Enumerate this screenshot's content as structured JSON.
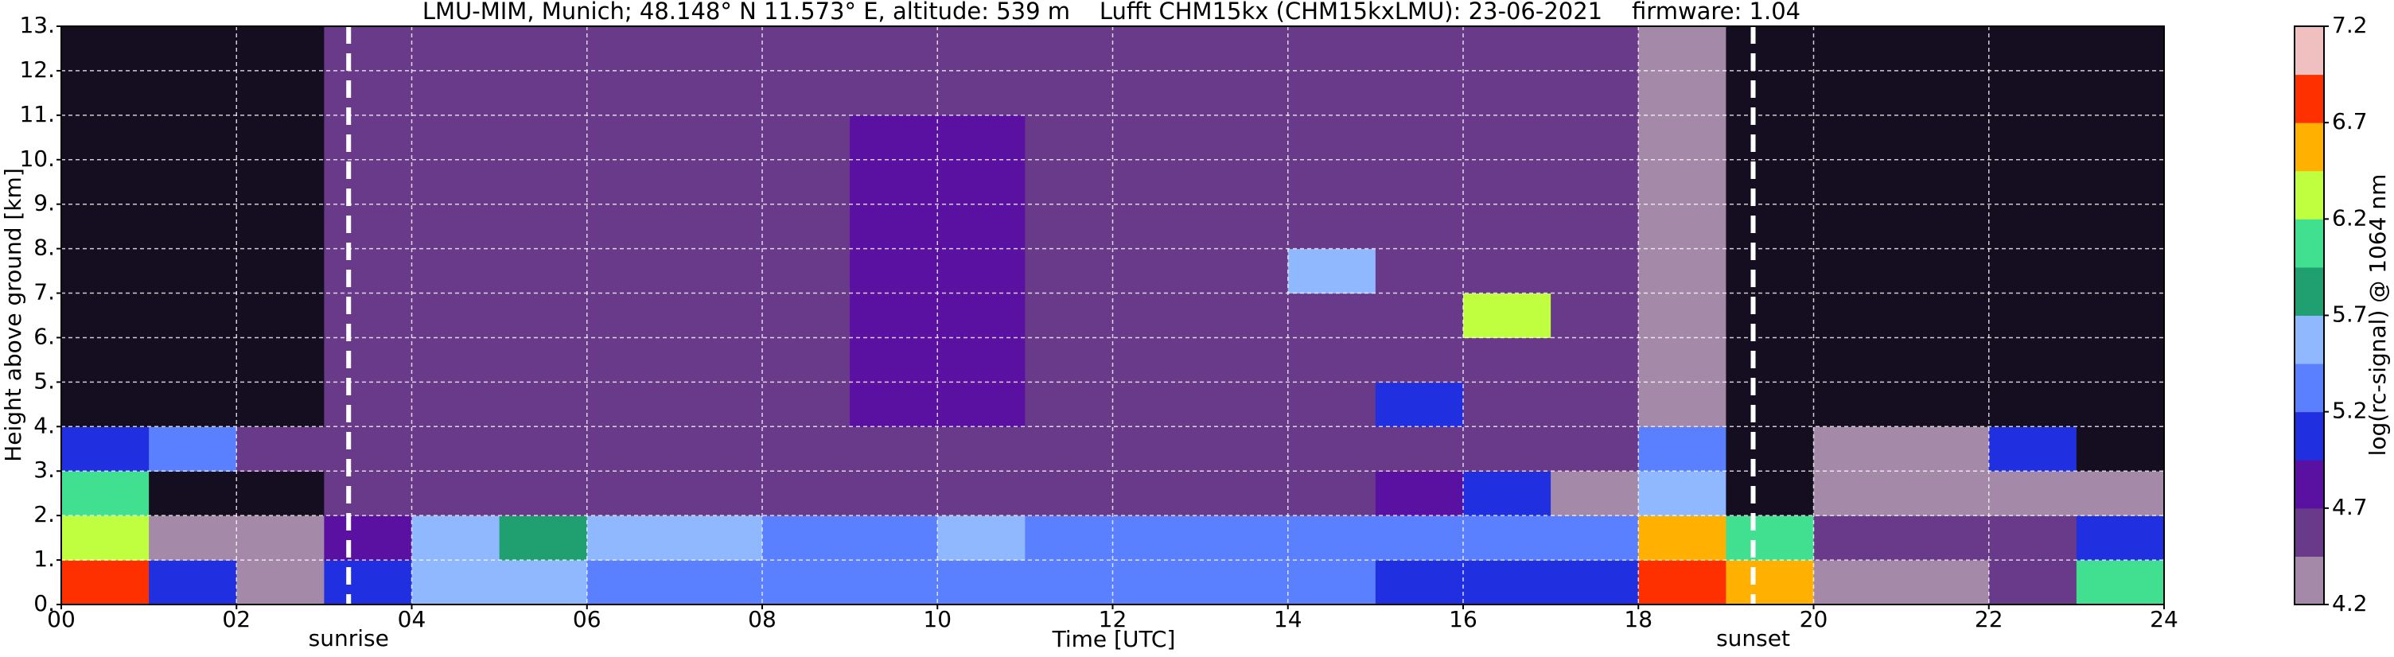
{
  "chart_data": {
    "type": "heatmap",
    "title": "LMU-MIM, Munich; 48.148° N 11.573° E, altitude: 539 m    Lufft CHM15kx (CHM15kxLMU): 23-06-2021    firmware: 1.04",
    "xlabel": "Time [UTC]",
    "ylabel": "Height above ground [km]",
    "colorbar_label": "log(rc-signal) @ 1064 nm",
    "xlim": [
      0,
      24
    ],
    "ylim": [
      0,
      13
    ],
    "zlim": [
      4.2,
      7.2
    ],
    "xticks": [
      {
        "value": 0,
        "label": "00"
      },
      {
        "value": 2,
        "label": "02"
      },
      {
        "value": 4,
        "label": "04"
      },
      {
        "value": 6,
        "label": "06"
      },
      {
        "value": 8,
        "label": "08"
      },
      {
        "value": 10,
        "label": "10"
      },
      {
        "value": 12,
        "label": "12"
      },
      {
        "value": 14,
        "label": "14"
      },
      {
        "value": 16,
        "label": "16"
      },
      {
        "value": 18,
        "label": "18"
      },
      {
        "value": 20,
        "label": "20"
      },
      {
        "value": 22,
        "label": "22"
      },
      {
        "value": 24,
        "label": "24"
      }
    ],
    "yticks": [
      {
        "value": 0,
        "label": "0."
      },
      {
        "value": 1,
        "label": "1."
      },
      {
        "value": 2,
        "label": "2."
      },
      {
        "value": 3,
        "label": "3."
      },
      {
        "value": 4,
        "label": "4."
      },
      {
        "value": 5,
        "label": "5."
      },
      {
        "value": 6,
        "label": "6."
      },
      {
        "value": 7,
        "label": "7."
      },
      {
        "value": 8,
        "label": "8."
      },
      {
        "value": 9,
        "label": "9."
      },
      {
        "value": 10,
        "label": "10."
      },
      {
        "value": 11,
        "label": "11."
      },
      {
        "value": 12,
        "label": "12."
      },
      {
        "value": 13,
        "label": "13."
      }
    ],
    "zticks": [
      4.2,
      4.7,
      5.2,
      5.7,
      6.2,
      6.7,
      7.2
    ],
    "grid": true,
    "colorscale": [
      "#a48aa8",
      "#6a3a8a",
      "#5a10a0",
      "#2030e0",
      "#5a80ff",
      "#90b8ff",
      "#20a070",
      "#40e090",
      "#c0ff40",
      "#ffb000",
      "#ff3000",
      "#f0c0c0"
    ],
    "under_color": "#140e20",
    "over_color": "#ffffff",
    "x": [
      0.5,
      1.5,
      2.5,
      3.5,
      4.5,
      5.5,
      6.5,
      7.5,
      8.5,
      9.5,
      10.5,
      11.5,
      12.5,
      13.5,
      14.5,
      15.5,
      16.5,
      17.5,
      18.5,
      19.5,
      20.5,
      21.5,
      22.5,
      23.5
    ],
    "y": [
      0.5,
      1.5,
      2.5,
      3.5,
      4.5,
      5.5,
      6.5,
      7.5,
      8.5,
      9.5,
      10.5,
      11.5,
      12.5
    ],
    "values": [
      [
        6.8,
        5.0,
        4.4,
        5.0,
        5.6,
        5.5,
        5.4,
        5.2,
        5.2,
        5.2,
        5.2,
        5.2,
        5.2,
        5.2,
        5.2,
        5.1,
        5.1,
        5.1,
        6.9,
        6.5,
        4.4,
        4.4,
        4.5,
        6.0
      ],
      [
        6.3,
        4.2,
        4.2,
        4.8,
        5.6,
        5.7,
        5.5,
        5.6,
        5.3,
        5.4,
        5.6,
        5.3,
        5.3,
        5.3,
        5.2,
        5.2,
        5.2,
        5.2,
        6.5,
        6.0,
        4.5,
        4.5,
        4.5,
        5.0
      ],
      [
        6.0,
        4.0,
        4.0,
        4.6,
        4.6,
        4.6,
        4.6,
        4.6,
        4.6,
        4.6,
        4.6,
        4.6,
        4.6,
        4.6,
        4.6,
        4.8,
        5.0,
        4.2,
        5.5,
        4.0,
        4.4,
        4.4,
        4.4,
        4.2
      ],
      [
        5.0,
        5.4,
        4.6,
        4.6,
        4.6,
        4.6,
        4.6,
        4.6,
        4.6,
        4.6,
        4.6,
        4.6,
        4.6,
        4.6,
        4.6,
        4.6,
        4.6,
        4.6,
        5.2,
        4.0,
        4.3,
        4.3,
        5.0,
        4.0
      ],
      [
        4.0,
        4.0,
        4.0,
        4.5,
        4.6,
        4.6,
        4.6,
        4.6,
        4.6,
        4.7,
        4.7,
        4.6,
        4.6,
        4.6,
        4.6,
        5.0,
        4.6,
        4.5,
        4.4,
        4.0,
        4.0,
        4.0,
        4.0,
        4.0
      ],
      [
        4.0,
        4.0,
        4.0,
        4.5,
        4.6,
        4.6,
        4.6,
        4.6,
        4.6,
        4.7,
        4.7,
        4.6,
        4.6,
        4.6,
        4.6,
        4.6,
        4.6,
        4.5,
        4.4,
        4.0,
        4.0,
        4.0,
        4.0,
        4.0
      ],
      [
        4.0,
        4.0,
        4.0,
        4.5,
        4.6,
        4.6,
        4.6,
        4.6,
        4.6,
        4.7,
        4.7,
        4.6,
        4.6,
        4.6,
        4.6,
        4.6,
        6.2,
        4.5,
        4.4,
        4.0,
        4.0,
        4.0,
        4.0,
        4.0
      ],
      [
        4.0,
        4.0,
        4.0,
        4.5,
        4.6,
        4.6,
        4.6,
        4.6,
        4.6,
        4.7,
        4.7,
        4.6,
        4.6,
        4.6,
        5.6,
        4.6,
        4.6,
        4.5,
        4.4,
        4.0,
        4.0,
        4.0,
        4.0,
        4.0
      ],
      [
        4.0,
        4.0,
        4.0,
        4.5,
        4.6,
        4.6,
        4.6,
        4.6,
        4.6,
        4.7,
        4.7,
        4.6,
        4.6,
        4.6,
        4.6,
        4.6,
        4.6,
        4.5,
        4.4,
        4.0,
        4.0,
        4.0,
        4.0,
        4.0
      ],
      [
        4.0,
        4.0,
        4.0,
        4.5,
        4.5,
        4.6,
        4.6,
        4.6,
        4.6,
        4.7,
        4.7,
        4.6,
        4.6,
        4.6,
        4.6,
        4.6,
        4.5,
        4.5,
        4.4,
        4.0,
        4.0,
        4.0,
        4.0,
        4.0
      ],
      [
        4.0,
        4.0,
        4.0,
        4.5,
        4.5,
        4.5,
        4.6,
        4.6,
        4.6,
        4.7,
        4.7,
        4.6,
        4.6,
        4.6,
        4.5,
        4.5,
        4.5,
        4.5,
        4.4,
        4.0,
        4.0,
        4.0,
        4.0,
        4.0
      ],
      [
        4.0,
        4.0,
        4.0,
        4.5,
        4.5,
        4.5,
        4.5,
        4.6,
        4.6,
        4.6,
        4.6,
        4.6,
        4.5,
        4.5,
        4.5,
        4.5,
        4.5,
        4.5,
        4.4,
        4.0,
        4.0,
        4.0,
        4.0,
        4.0
      ],
      [
        4.0,
        4.0,
        4.0,
        4.5,
        4.5,
        4.5,
        4.5,
        4.5,
        4.5,
        4.5,
        4.5,
        4.5,
        4.5,
        4.5,
        4.5,
        4.5,
        4.5,
        4.5,
        4.4,
        4.0,
        4.0,
        4.0,
        4.0,
        4.0
      ]
    ],
    "annotations": [
      {
        "text": "sunrise",
        "x": 3.28
      },
      {
        "text": "sunset",
        "x": 19.31
      }
    ]
  }
}
